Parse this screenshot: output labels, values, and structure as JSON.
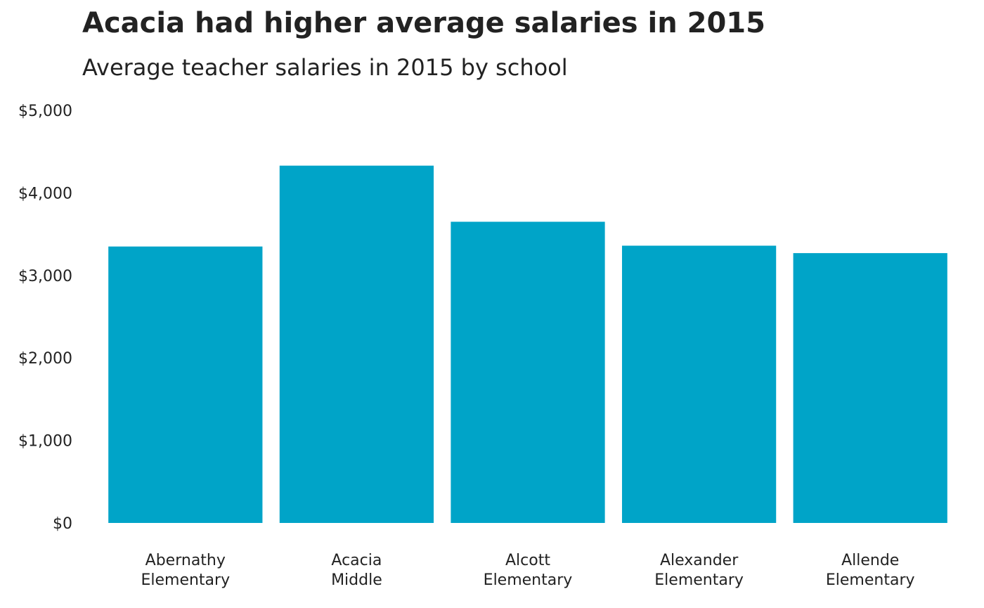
{
  "chart_data": {
    "type": "bar",
    "title": "Acacia had higher average salaries in 2015",
    "subtitle": "Average teacher salaries in 2015 by school",
    "xlabel": "",
    "ylabel": "",
    "categories": [
      [
        "Abernathy",
        "Elementary"
      ],
      [
        "Acacia",
        "Middle"
      ],
      [
        "Alcott",
        "Elementary"
      ],
      [
        "Alexander",
        "Elementary"
      ],
      [
        "Allende",
        "Elementary"
      ]
    ],
    "values": [
      3350,
      4330,
      3650,
      3360,
      3270
    ],
    "ylim": [
      0,
      5000
    ],
    "yticks": [
      0,
      1000,
      2000,
      3000,
      4000,
      5000
    ],
    "ytick_labels": [
      "$0",
      "$1,000",
      "$2,000",
      "$3,000",
      "$4,000",
      "$5,000"
    ],
    "grid": false,
    "legend": "none",
    "bar_color": "#00a4c8"
  }
}
